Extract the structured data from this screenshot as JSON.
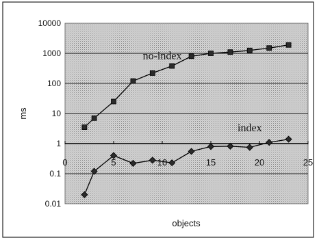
{
  "chart_data": {
    "type": "line",
    "title": "",
    "xlabel": "objects",
    "ylabel": "ms",
    "yscale": "log",
    "ylim": [
      0.01,
      10000
    ],
    "xlim": [
      0,
      25
    ],
    "x_ticks": [
      "0",
      "5",
      "10",
      "15",
      "20",
      "25"
    ],
    "y_ticks": [
      "10000",
      "1000",
      "100",
      "10",
      "1",
      "0.1",
      "0.01"
    ],
    "grid": "horizontal",
    "background": "gray dotted",
    "series": [
      {
        "name": "no-index",
        "marker": "square",
        "x": [
          2,
          3,
          5,
          7,
          9,
          11,
          13,
          15,
          17,
          19,
          21,
          23
        ],
        "y": [
          3.5,
          7,
          25,
          120,
          220,
          380,
          800,
          1000,
          1100,
          1250,
          1500,
          1900
        ]
      },
      {
        "name": "index",
        "marker": "diamond",
        "x": [
          2,
          3,
          5,
          7,
          9,
          11,
          13,
          15,
          17,
          19,
          21,
          23
        ],
        "y": [
          0.02,
          0.12,
          0.4,
          0.22,
          0.28,
          0.23,
          0.55,
          0.8,
          0.82,
          0.75,
          1.1,
          1.4
        ]
      }
    ]
  }
}
